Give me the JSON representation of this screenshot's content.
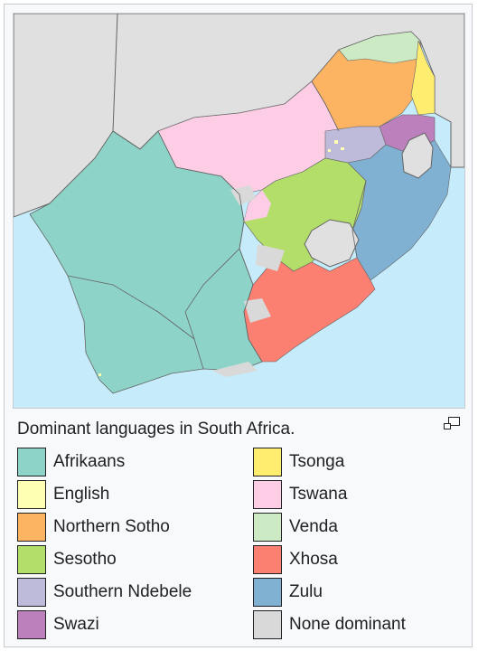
{
  "caption": "Dominant languages in South Africa.",
  "enlarge_icon": "magnify-clip-icon",
  "map_colors": {
    "ocean": "#c6ecfb",
    "land_outside": "#e0e0e0",
    "border": "#646464"
  },
  "legend": [
    {
      "label": "Afrikaans",
      "color": "#8dd3c7"
    },
    {
      "label": "English",
      "color": "#ffffb3"
    },
    {
      "label": "Northern Sotho",
      "color": "#fdb462"
    },
    {
      "label": "Sesotho",
      "color": "#b3de69"
    },
    {
      "label": "Southern Ndebele",
      "color": "#bebada"
    },
    {
      "label": "Swazi",
      "color": "#bc80bd"
    },
    {
      "label": "Tsonga",
      "color": "#ffed6f"
    },
    {
      "label": "Tswana",
      "color": "#fccde5"
    },
    {
      "label": "Venda",
      "color": "#ccebc5"
    },
    {
      "label": "Xhosa",
      "color": "#fb8072"
    },
    {
      "label": "Zulu",
      "color": "#80b1d3"
    },
    {
      "label": "None dominant",
      "color": "#d9d9d9"
    }
  ]
}
